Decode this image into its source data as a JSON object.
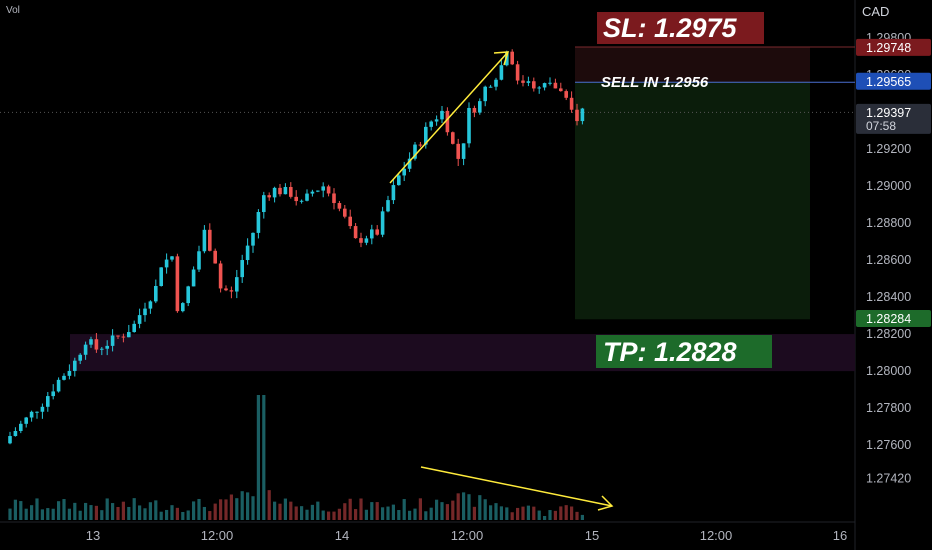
{
  "header": {
    "vol_label": "Vol",
    "currency": "CAD"
  },
  "colors": {
    "up": "#26c6da",
    "down": "#ef5350",
    "sl": "#7b1a1e",
    "entry": "#1e4fb6",
    "tp": "#1d6b2a",
    "arrow": "#ffeb3b",
    "zone": "#1c0b1f",
    "tp_box": "#0b1d0b",
    "sl_box": "#1d0b0c"
  },
  "chart_data": {
    "type": "candlestick",
    "price_axis": {
      "ticks": [
        "1.29800",
        "1.29600",
        "1.29200",
        "1.29000",
        "1.28800",
        "1.28600",
        "1.28400",
        "1.28200",
        "1.28000",
        "1.27800",
        "1.27600",
        "1.27420"
      ],
      "tick_values": [
        1.298,
        1.296,
        1.292,
        1.29,
        1.288,
        1.286,
        1.284,
        1.282,
        1.28,
        1.278,
        1.276,
        1.2742
      ],
      "ylim": [
        1.2725,
        1.2995
      ]
    },
    "time_axis": {
      "ticks": [
        "13",
        "12:00",
        "14",
        "12:00",
        "15",
        "12:00",
        "16"
      ]
    },
    "price_labels": [
      {
        "text": "1.29748",
        "value": 1.29748,
        "color": "#7b1a1e"
      },
      {
        "text": "1.29565",
        "value": 1.29565,
        "color": "#1e4fb6"
      },
      {
        "text": "1.29397",
        "value": 1.29397,
        "color": "#2a2e39",
        "countdown": "07:58"
      },
      {
        "text": "1.28284",
        "value": 1.28284,
        "color": "#1d6b2a"
      }
    ],
    "annotations": {
      "sl": {
        "text": "SL: 1.2975",
        "value": 1.2975
      },
      "entry": {
        "text": "SELL IN 1.2956",
        "value": 1.2956
      },
      "tp": {
        "text": "TP: 1.2828",
        "value": 1.2828
      }
    },
    "zone": {
      "low": 1.28,
      "high": 1.282
    },
    "close_path": [
      [
        0,
        1.2765
      ],
      [
        3,
        1.2774
      ],
      [
        6,
        1.2783
      ],
      [
        9,
        1.2795
      ],
      [
        12,
        1.2805
      ],
      [
        14,
        1.2817
      ],
      [
        16,
        1.2812
      ],
      [
        18,
        1.2815
      ],
      [
        21,
        1.282
      ],
      [
        23,
        1.2825
      ],
      [
        25,
        1.2836
      ],
      [
        27,
        1.2845
      ],
      [
        28,
        1.2858
      ],
      [
        30,
        1.2862
      ],
      [
        31,
        1.2835
      ],
      [
        32,
        1.2835
      ],
      [
        34,
        1.2855
      ],
      [
        36,
        1.2875
      ],
      [
        38,
        1.286
      ],
      [
        39,
        1.2845
      ],
      [
        41,
        1.2842
      ],
      [
        43,
        1.286
      ],
      [
        45,
        1.2875
      ],
      [
        47,
        1.2895
      ],
      [
        49,
        1.2898
      ],
      [
        52,
        1.2896
      ],
      [
        54,
        1.289
      ],
      [
        56,
        1.2897
      ],
      [
        58,
        1.29
      ],
      [
        60,
        1.2893
      ],
      [
        62,
        1.2882
      ],
      [
        64,
        1.287
      ],
      [
        66,
        1.2873
      ],
      [
        68,
        1.2875
      ],
      [
        70,
        1.2892
      ],
      [
        72,
        1.2905
      ],
      [
        74,
        1.2915
      ],
      [
        76,
        1.2925
      ],
      [
        78,
        1.2935
      ],
      [
        80,
        1.294
      ],
      [
        81,
        1.2932
      ],
      [
        82,
        1.2922
      ],
      [
        83,
        1.2915
      ],
      [
        84,
        1.2925
      ],
      [
        85,
        1.294
      ],
      [
        87,
        1.2945
      ],
      [
        88,
        1.2953
      ],
      [
        90,
        1.296
      ],
      [
        91,
        1.2965
      ],
      [
        92,
        1.2975
      ],
      [
        93,
        1.2968
      ],
      [
        94,
        1.2955
      ],
      [
        96,
        1.2958
      ],
      [
        98,
        1.2952
      ],
      [
        100,
        1.2956
      ],
      [
        102,
        1.295
      ],
      [
        104,
        1.294
      ],
      [
        105,
        1.2937
      ],
      [
        106,
        1.2941
      ]
    ],
    "volume_trend": "rising then spike then declining",
    "series": [
      {
        "values": []
      }
    ]
  }
}
